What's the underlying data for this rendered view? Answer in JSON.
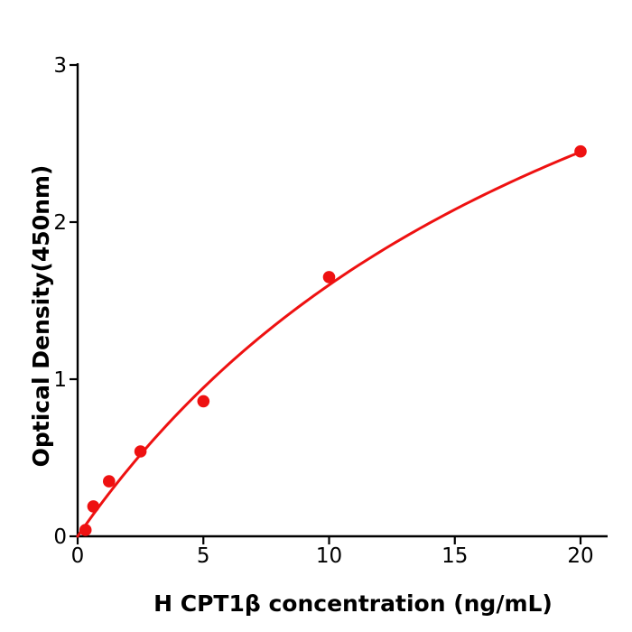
{
  "chart_data": {
    "type": "scatter",
    "title": "",
    "xlabel": "H  CPT1β concentration (ng/mL)",
    "ylabel": "Optical Density(450nm)",
    "x": [
      0.313,
      0.625,
      1.25,
      2.5,
      5,
      10,
      20
    ],
    "y": [
      0.04,
      0.19,
      0.35,
      0.54,
      0.86,
      1.65,
      2.45
    ],
    "xticks": [
      "0",
      "5",
      "10",
      "15",
      "20"
    ],
    "xtick_values": [
      0,
      5,
      10,
      15,
      20
    ],
    "yticks": [
      "0",
      "1",
      "2",
      "3"
    ],
    "ytick_values": [
      0,
      1,
      2,
      3
    ],
    "xlim": [
      0,
      21.1
    ],
    "ylim": [
      0,
      3
    ],
    "grid": false,
    "legend": "none",
    "fit_curve": {
      "model": "saturation y = vmax*x/(km+x)",
      "vmax": 5.2,
      "km": 22.5,
      "x_start": 0,
      "x_end": 20
    },
    "colors": {
      "point": "#ee1111",
      "curve": "#ee1111",
      "axis": "#000000",
      "text": "#000000",
      "background": "#ffffff"
    },
    "marker": {
      "shape": "circle",
      "radius_px": 6.8
    }
  }
}
